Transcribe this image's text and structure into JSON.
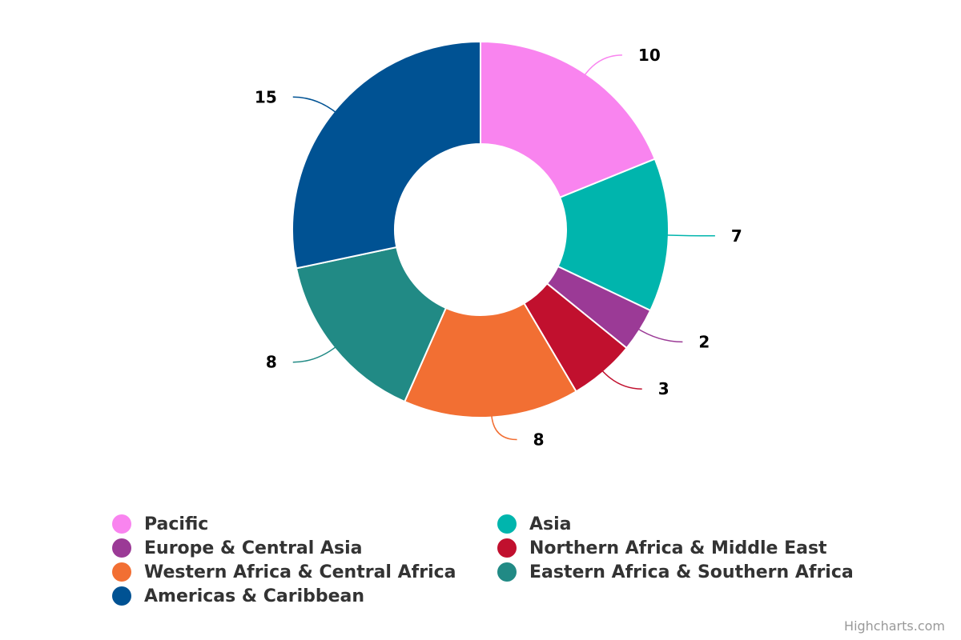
{
  "chart_data": {
    "type": "pie",
    "variant": "donut",
    "title": "",
    "categories": [
      "Pacific",
      "Asia",
      "Europe & Central Asia",
      "Northern Africa & Middle East",
      "Western Africa & Central Africa",
      "Eastern Africa & Southern Africa",
      "Americas & Caribbean"
    ],
    "values": [
      10,
      7,
      2,
      3,
      8,
      8,
      15
    ],
    "colors": [
      "#f984ef",
      "#00b5ad",
      "#9b3a96",
      "#c1102e",
      "#f26f33",
      "#218a85",
      "#005293"
    ],
    "legend_placement": "bottom",
    "legend_columns": 2,
    "data_labels": true
  },
  "credits": "Highcharts.com"
}
